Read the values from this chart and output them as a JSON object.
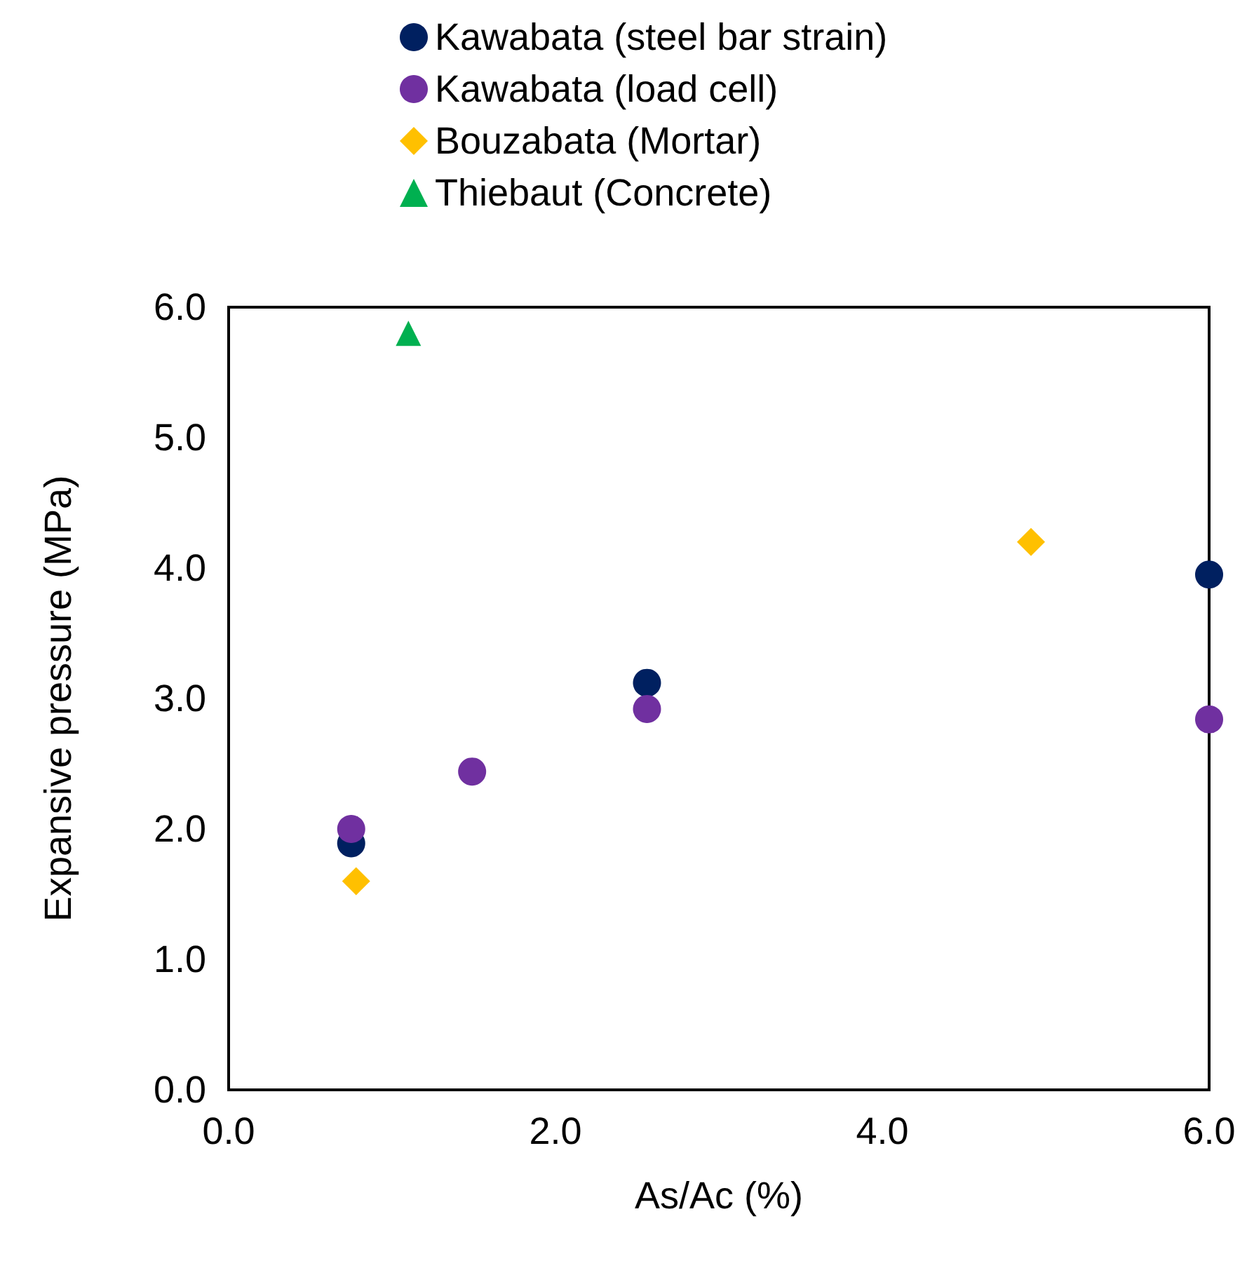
{
  "chart_data": {
    "type": "scatter",
    "xlabel": "As/Ac (%)",
    "ylabel": "Expansive pressure (MPa)",
    "xlim": [
      0,
      6
    ],
    "xticks": [
      {
        "value": 0,
        "label": "0.0"
      },
      {
        "value": 2,
        "label": "2.0"
      },
      {
        "value": 4,
        "label": "4.0"
      },
      {
        "value": 6,
        "label": "6.0"
      }
    ],
    "ylim": [
      0,
      6
    ],
    "yticks": [
      {
        "value": 0,
        "label": "0.0"
      },
      {
        "value": 1,
        "label": "1.0"
      },
      {
        "value": 2,
        "label": "2.0"
      },
      {
        "value": 3,
        "label": "3.0"
      },
      {
        "value": 4,
        "label": "4.0"
      },
      {
        "value": 5,
        "label": "5.0"
      },
      {
        "value": 6,
        "label": "6.0"
      }
    ],
    "grid": false,
    "legend": "top",
    "series": [
      {
        "name": "Kawabata (steel bar strain)",
        "color": "#002060",
        "marker": "circle",
        "x": [
          0.75,
          2.56,
          6.0
        ],
        "values": [
          1.89,
          3.12,
          3.95
        ]
      },
      {
        "name": "Kawabata (load cell)",
        "color": "#7030a0",
        "marker": "circle",
        "x": [
          0.75,
          1.49,
          2.56,
          6.0
        ],
        "values": [
          2.0,
          2.44,
          2.92,
          2.84
        ]
      },
      {
        "name": "Bouzabata (Mortar)",
        "color": "#ffc000",
        "marker": "diamond",
        "x": [
          0.78,
          4.91
        ],
        "values": [
          1.6,
          4.2
        ]
      },
      {
        "name": "Thiebaut (Concrete)",
        "color": "#00b050",
        "marker": "triangle",
        "x": [
          1.1
        ],
        "values": [
          5.8
        ]
      }
    ]
  }
}
